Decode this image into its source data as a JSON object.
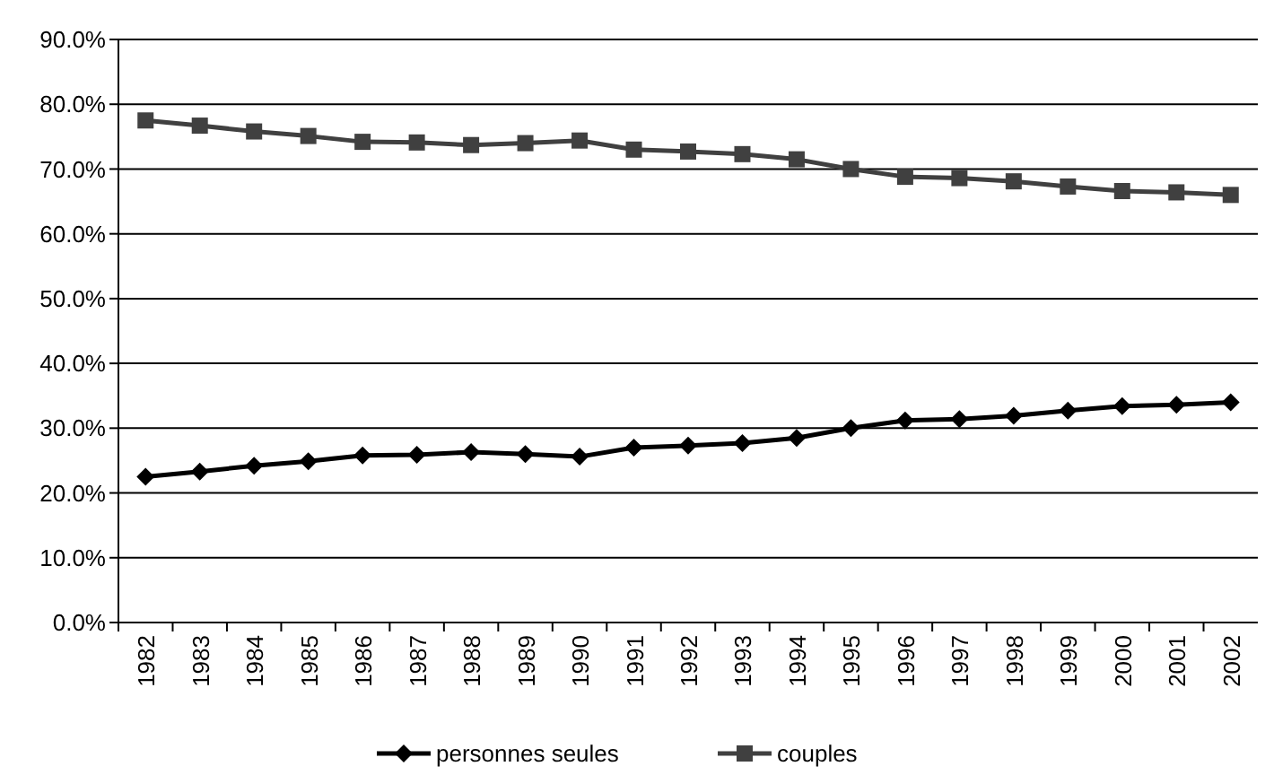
{
  "chart_data": {
    "type": "line",
    "categories": [
      "1982",
      "1983",
      "1984",
      "1985",
      "1986",
      "1987",
      "1988",
      "1989",
      "1990",
      "1991",
      "1992",
      "1993",
      "1994",
      "1995",
      "1996",
      "1997",
      "1998",
      "1999",
      "2000",
      "2001",
      "2002"
    ],
    "series": [
      {
        "name": "personnes seules",
        "color": "#000000",
        "marker": "diamond",
        "values": [
          22.5,
          23.3,
          24.2,
          24.9,
          25.8,
          25.9,
          26.3,
          26.0,
          25.6,
          27.0,
          27.3,
          27.7,
          28.5,
          30.0,
          31.2,
          31.4,
          31.9,
          32.7,
          33.4,
          33.6,
          34.0
        ]
      },
      {
        "name": "couples",
        "color": "#404040",
        "marker": "square",
        "values": [
          77.5,
          76.7,
          75.8,
          75.1,
          74.2,
          74.1,
          73.7,
          74.0,
          74.4,
          73.0,
          72.7,
          72.3,
          71.5,
          70.0,
          68.8,
          68.6,
          68.1,
          67.3,
          66.6,
          66.4,
          66.0
        ]
      }
    ],
    "ylim": [
      0,
      90
    ],
    "yticks": [
      {
        "value": 0,
        "label": "0.0%"
      },
      {
        "value": 10,
        "label": "10.0%"
      },
      {
        "value": 20,
        "label": "20.0%"
      },
      {
        "value": 30,
        "label": "30.0%"
      },
      {
        "value": 40,
        "label": "40.0%"
      },
      {
        "value": 50,
        "label": "50.0%"
      },
      {
        "value": 60,
        "label": "60.0%"
      },
      {
        "value": 70,
        "label": "70.0%"
      },
      {
        "value": 80,
        "label": "80.0%"
      },
      {
        "value": 90,
        "label": "90.0%"
      }
    ],
    "grid": "y",
    "legend": "bottom",
    "line_style": "solid"
  }
}
